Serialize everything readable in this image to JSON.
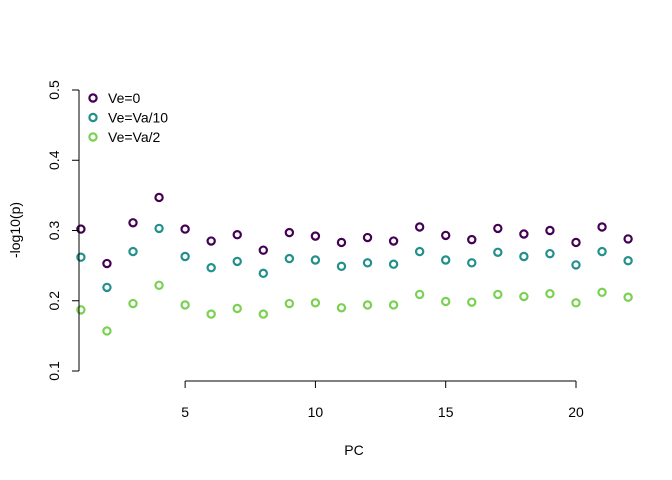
{
  "chart_data": {
    "type": "scatter",
    "title": "",
    "xlabel": "PC",
    "ylabel": "-log10(p)",
    "xlim": [
      0.16,
      22.84
    ],
    "ylim": [
      0.1,
      0.5
    ],
    "xticks": [
      5,
      10,
      15,
      20
    ],
    "yticks": [
      0.1,
      0.2,
      0.3,
      0.4,
      0.5
    ],
    "grid": false,
    "legend_position": "top-left",
    "x": [
      1,
      2,
      3,
      4,
      5,
      6,
      7,
      8,
      9,
      10,
      11,
      12,
      13,
      14,
      15,
      16,
      17,
      18,
      19,
      20,
      21,
      22
    ],
    "series": [
      {
        "name": "Ve=0",
        "color": "#440154",
        "values": [
          0.302,
          0.253,
          0.311,
          0.347,
          0.302,
          0.285,
          0.294,
          0.272,
          0.297,
          0.292,
          0.283,
          0.29,
          0.285,
          0.305,
          0.293,
          0.287,
          0.303,
          0.295,
          0.3,
          0.283,
          0.305,
          0.288
        ]
      },
      {
        "name": "Ve=Va/10",
        "color": "#21908C",
        "values": [
          0.262,
          0.219,
          0.27,
          0.303,
          0.263,
          0.247,
          0.256,
          0.239,
          0.26,
          0.258,
          0.249,
          0.254,
          0.252,
          0.27,
          0.258,
          0.254,
          0.269,
          0.263,
          0.267,
          0.251,
          0.27,
          0.257
        ]
      },
      {
        "name": "Ve=Va/2",
        "color": "#7AD151",
        "values": [
          0.187,
          0.157,
          0.196,
          0.222,
          0.194,
          0.181,
          0.189,
          0.181,
          0.196,
          0.197,
          0.19,
          0.194,
          0.194,
          0.209,
          0.199,
          0.198,
          0.209,
          0.206,
          0.21,
          0.197,
          0.212,
          0.205
        ]
      }
    ]
  }
}
